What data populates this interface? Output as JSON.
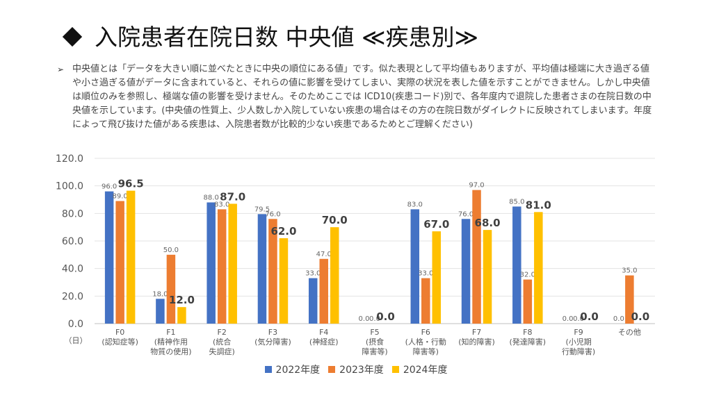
{
  "slide": {
    "title": "入院患者在院日数 中央値 ≪疾患別≫",
    "description": "中央値とは「データを大きい順に並べたときに中央の順位にある値」です。似た表現として平均値もありますが、平均値は極端に大き過ぎる値や小さ過ぎる値がデータに含まれていると、それらの値に影響を受けてしまい、実際の状況を表した値を示すことができません。しかし中央値は順位のみを参照し、極端な値の影響を受けません。そのためここでは ICD10(疾患コード)別で、各年度内で退院した患者さまの在院日数の中央値を示しています。(中央値の性質上、少人数しか入院していない疾患の場合はその方の在院日数がダイレクトに反映されてしまいます。年度によって飛び抜けた値がある疾患は、入院患者数が比較的少ない疾患であるためとご理解ください)"
  },
  "chart_data": {
    "type": "bar",
    "unit_label": "（日）",
    "ylim": [
      0,
      120
    ],
    "yticks": [
      "0.0",
      "20.0",
      "40.0",
      "60.0",
      "80.0",
      "100.0",
      "120.0"
    ],
    "grid": true,
    "legend_position": "bottom",
    "categories": [
      [
        "F0",
        "(認知症等)"
      ],
      [
        "F1",
        "(精神作用",
        "物質の使用)"
      ],
      [
        "F2",
        "(統合",
        "失調症)"
      ],
      [
        "F3",
        "(気分障害)"
      ],
      [
        "F4",
        "(神経症)"
      ],
      [
        "F5",
        "(摂食",
        "障害等)"
      ],
      [
        "F6",
        "(人格・行動",
        "障害等)"
      ],
      [
        "F7",
        "(知的障害)"
      ],
      [
        "F8",
        "(発達障害)"
      ],
      [
        "F9",
        "(小児期",
        "行動障害)"
      ],
      [
        "その他"
      ]
    ],
    "series": [
      {
        "name": "2022年度",
        "color": "#4472C4",
        "values": [
          96.0,
          18.0,
          88.0,
          79.5,
          33.0,
          0.0,
          83.0,
          76.0,
          85.0,
          0.0,
          0.0
        ],
        "labels": [
          "96.0",
          "18.0",
          "88.0",
          "79.5",
          "33.0",
          "0.0",
          "83.0",
          "76.0",
          "85.0",
          "0.0",
          "0.0"
        ]
      },
      {
        "name": "2023年度",
        "color": "#ED7D31",
        "values": [
          89.0,
          50.0,
          83.0,
          76.0,
          47.0,
          0.0,
          33.0,
          97.0,
          32.0,
          0.0,
          35.0
        ],
        "labels": [
          "89.0",
          "50.0",
          "83.0",
          "76.0",
          "47.0",
          "0.0",
          "33.0",
          "97.0",
          "32.0",
          "0.0",
          "35.0"
        ]
      },
      {
        "name": "2024年度",
        "color": "#FFC000",
        "values": [
          96.5,
          12.0,
          87.0,
          62.0,
          70.0,
          0.0,
          67.0,
          68.0,
          81.0,
          0.0,
          0.0
        ],
        "labels": [
          "96.5",
          "12.0",
          "87.0",
          "62.0",
          "70.0",
          "0.0",
          "67.0",
          "68.0",
          "81.0",
          "0.0",
          "0.0"
        ]
      }
    ]
  }
}
